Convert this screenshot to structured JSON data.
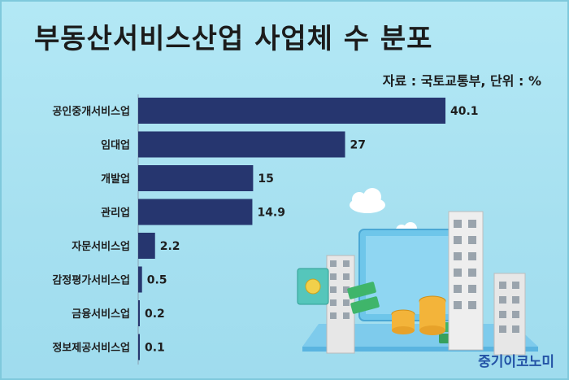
{
  "title": "부동산서비스산업 사업체 수 분포",
  "source": "자료 : 국토교통부, 단위 : %",
  "brand": "중기이코노미",
  "colors": {
    "bar": "#26366f",
    "background": "#a9e3f2"
  },
  "chart_data": {
    "type": "bar",
    "orientation": "horizontal",
    "title": "부동산서비스산업 사업체 수 분포",
    "categories": [
      "공인중개서비스업",
      "임대업",
      "개발업",
      "관리업",
      "자문서비스업",
      "감정평가서비스업",
      "금융서비스업",
      "정보제공서비스업"
    ],
    "values": [
      40.1,
      27,
      15,
      14.9,
      2.2,
      0.5,
      0.2,
      0.1
    ],
    "value_labels": [
      "40.1",
      "27",
      "15",
      "14.9",
      "2.2",
      "0.5",
      "0.2",
      "0.1"
    ],
    "unit": "%",
    "xlim": [
      0,
      40.1
    ],
    "grid": false,
    "legend": "none"
  }
}
